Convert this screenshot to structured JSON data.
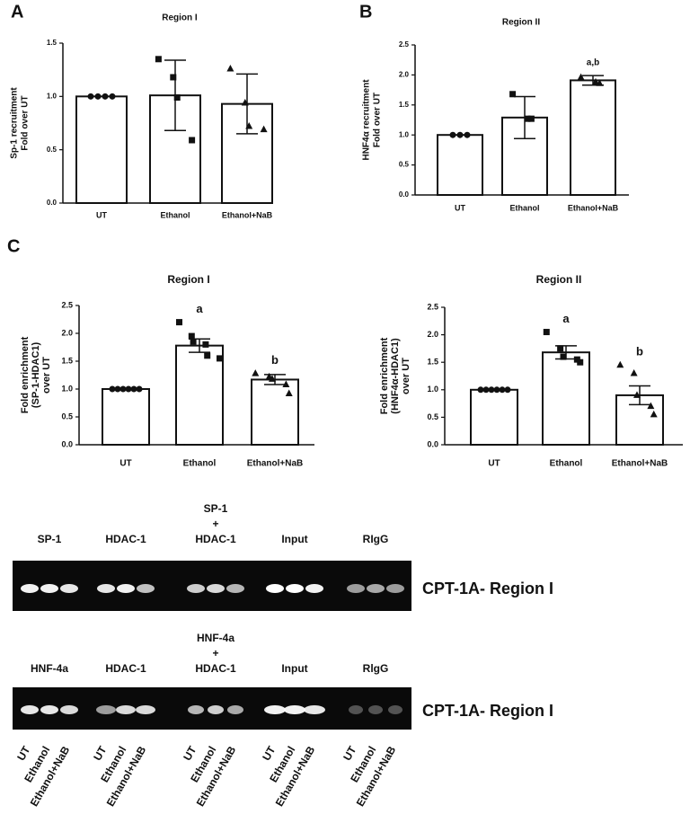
{
  "panel_labels": [
    "A",
    "B",
    "C"
  ],
  "chart_data": [
    {
      "type": "bar",
      "title": "Region I",
      "ylabel": [
        "Sp-1 recruitment",
        "Fold over UT"
      ],
      "categories": [
        "UT",
        "Ethanol",
        "Ethanol+NaB"
      ],
      "values": [
        1.0,
        1.01,
        0.93
      ],
      "errors": [
        0,
        0.33,
        0.28
      ],
      "points": [
        [
          1.0,
          1.0,
          1.0,
          1.0
        ],
        [
          1.35,
          1.18,
          0.99,
          0.59
        ],
        [
          1.26,
          0.94,
          0.72,
          0.69
        ]
      ],
      "annotations": [
        null,
        null,
        null
      ],
      "ylim": [
        0,
        1.5
      ],
      "yticks": [
        {
          "value": 0,
          "label": "0.0"
        },
        {
          "value": 0.5,
          "label": "0.5"
        },
        {
          "value": 1,
          "label": "1.0"
        },
        {
          "value": 1.5,
          "label": "1.5"
        }
      ]
    },
    {
      "type": "bar",
      "title": "Region II",
      "ylabel": [
        "HNF4α recruitment",
        "Fold over UT"
      ],
      "categories": [
        "UT",
        "Ethanol",
        "Ethanol+NaB"
      ],
      "values": [
        1.0,
        1.29,
        1.91
      ],
      "errors": [
        0,
        0.35,
        0.08
      ],
      "points": [
        [
          1.0,
          1.0,
          1.0
        ],
        [
          1.68,
          1.27,
          1.27
        ],
        [
          1.96,
          1.88,
          1.86
        ]
      ],
      "annotations": [
        null,
        null,
        "a,b"
      ],
      "ylim": [
        0,
        2.5
      ],
      "yticks": [
        {
          "value": 0,
          "label": "0.0"
        },
        {
          "value": 0.5,
          "label": "0.5"
        },
        {
          "value": 1,
          "label": "1.0"
        },
        {
          "value": 1.5,
          "label": "1.5"
        },
        {
          "value": 2,
          "label": "2.0"
        },
        {
          "value": 2.5,
          "label": "2.5"
        }
      ]
    },
    {
      "type": "bar",
      "title": "Region I",
      "ylabel": [
        "Fold enrichment",
        "(SP-1-HDAC1)",
        "over UT"
      ],
      "categories": [
        "UT",
        "Ethanol",
        "Ethanol+NaB"
      ],
      "values": [
        1.0,
        1.78,
        1.17
      ],
      "errors": [
        0,
        0.12,
        0.09
      ],
      "points": [
        [
          1.0,
          1.0,
          1.0,
          1.0,
          1.0,
          1.0
        ],
        [
          2.2,
          1.95,
          1.85,
          1.8,
          1.6,
          1.55
        ],
        [
          1.28,
          1.22,
          1.18,
          1.08,
          0.92
        ]
      ],
      "annotations": [
        null,
        "a",
        "b"
      ],
      "ylim": [
        0,
        2.5
      ],
      "yticks": [
        {
          "value": 0,
          "label": "0.0"
        },
        {
          "value": 0.5,
          "label": "0.5"
        },
        {
          "value": 1,
          "label": "1.0"
        },
        {
          "value": 1.5,
          "label": "1.5"
        },
        {
          "value": 2,
          "label": "2.0"
        },
        {
          "value": 2.5,
          "label": "2.5"
        }
      ]
    },
    {
      "type": "bar",
      "title": "Region II",
      "ylabel": [
        "Fold enrichment",
        "(HNF4α-HDAC1)",
        "over UT"
      ],
      "categories": [
        "UT",
        "Ethanol",
        "Ethanol+NaB"
      ],
      "values": [
        1.0,
        1.68,
        0.9
      ],
      "errors": [
        0,
        0.12,
        0.17
      ],
      "points": [
        [
          1.0,
          1.0,
          1.0,
          1.0,
          1.0,
          1.0
        ],
        [
          2.05,
          1.75,
          1.6,
          1.55,
          1.5
        ],
        [
          1.45,
          1.3,
          0.9,
          0.7,
          0.55
        ]
      ],
      "annotations": [
        null,
        "a",
        "b"
      ],
      "ylim": [
        0,
        2.5
      ],
      "yticks": [
        {
          "value": 0,
          "label": "0.0"
        },
        {
          "value": 0.5,
          "label": "0.5"
        },
        {
          "value": 1,
          "label": "1.0"
        },
        {
          "value": 1.5,
          "label": "1.5"
        },
        {
          "value": 2,
          "label": "2.0"
        },
        {
          "value": 2.5,
          "label": "2.5"
        }
      ]
    }
  ],
  "gels": [
    {
      "labels": [
        [
          "SP-1"
        ],
        [
          "HDAC-1"
        ],
        [
          "SP-1",
          "+",
          "HDAC-1"
        ],
        [
          "Input"
        ],
        [
          "RIgG"
        ]
      ],
      "side_label": "CPT-1A- Region I"
    },
    {
      "labels": [
        [
          "HNF-4a"
        ],
        [
          "HDAC-1"
        ],
        [
          "HNF-4a",
          "+",
          "HDAC-1"
        ],
        [
          "Input"
        ],
        [
          "RlgG"
        ]
      ],
      "side_label": "CPT-1A- Region I"
    }
  ],
  "lane_labels": [
    "UT",
    "Ethanol",
    "Ethanol+NaB"
  ]
}
